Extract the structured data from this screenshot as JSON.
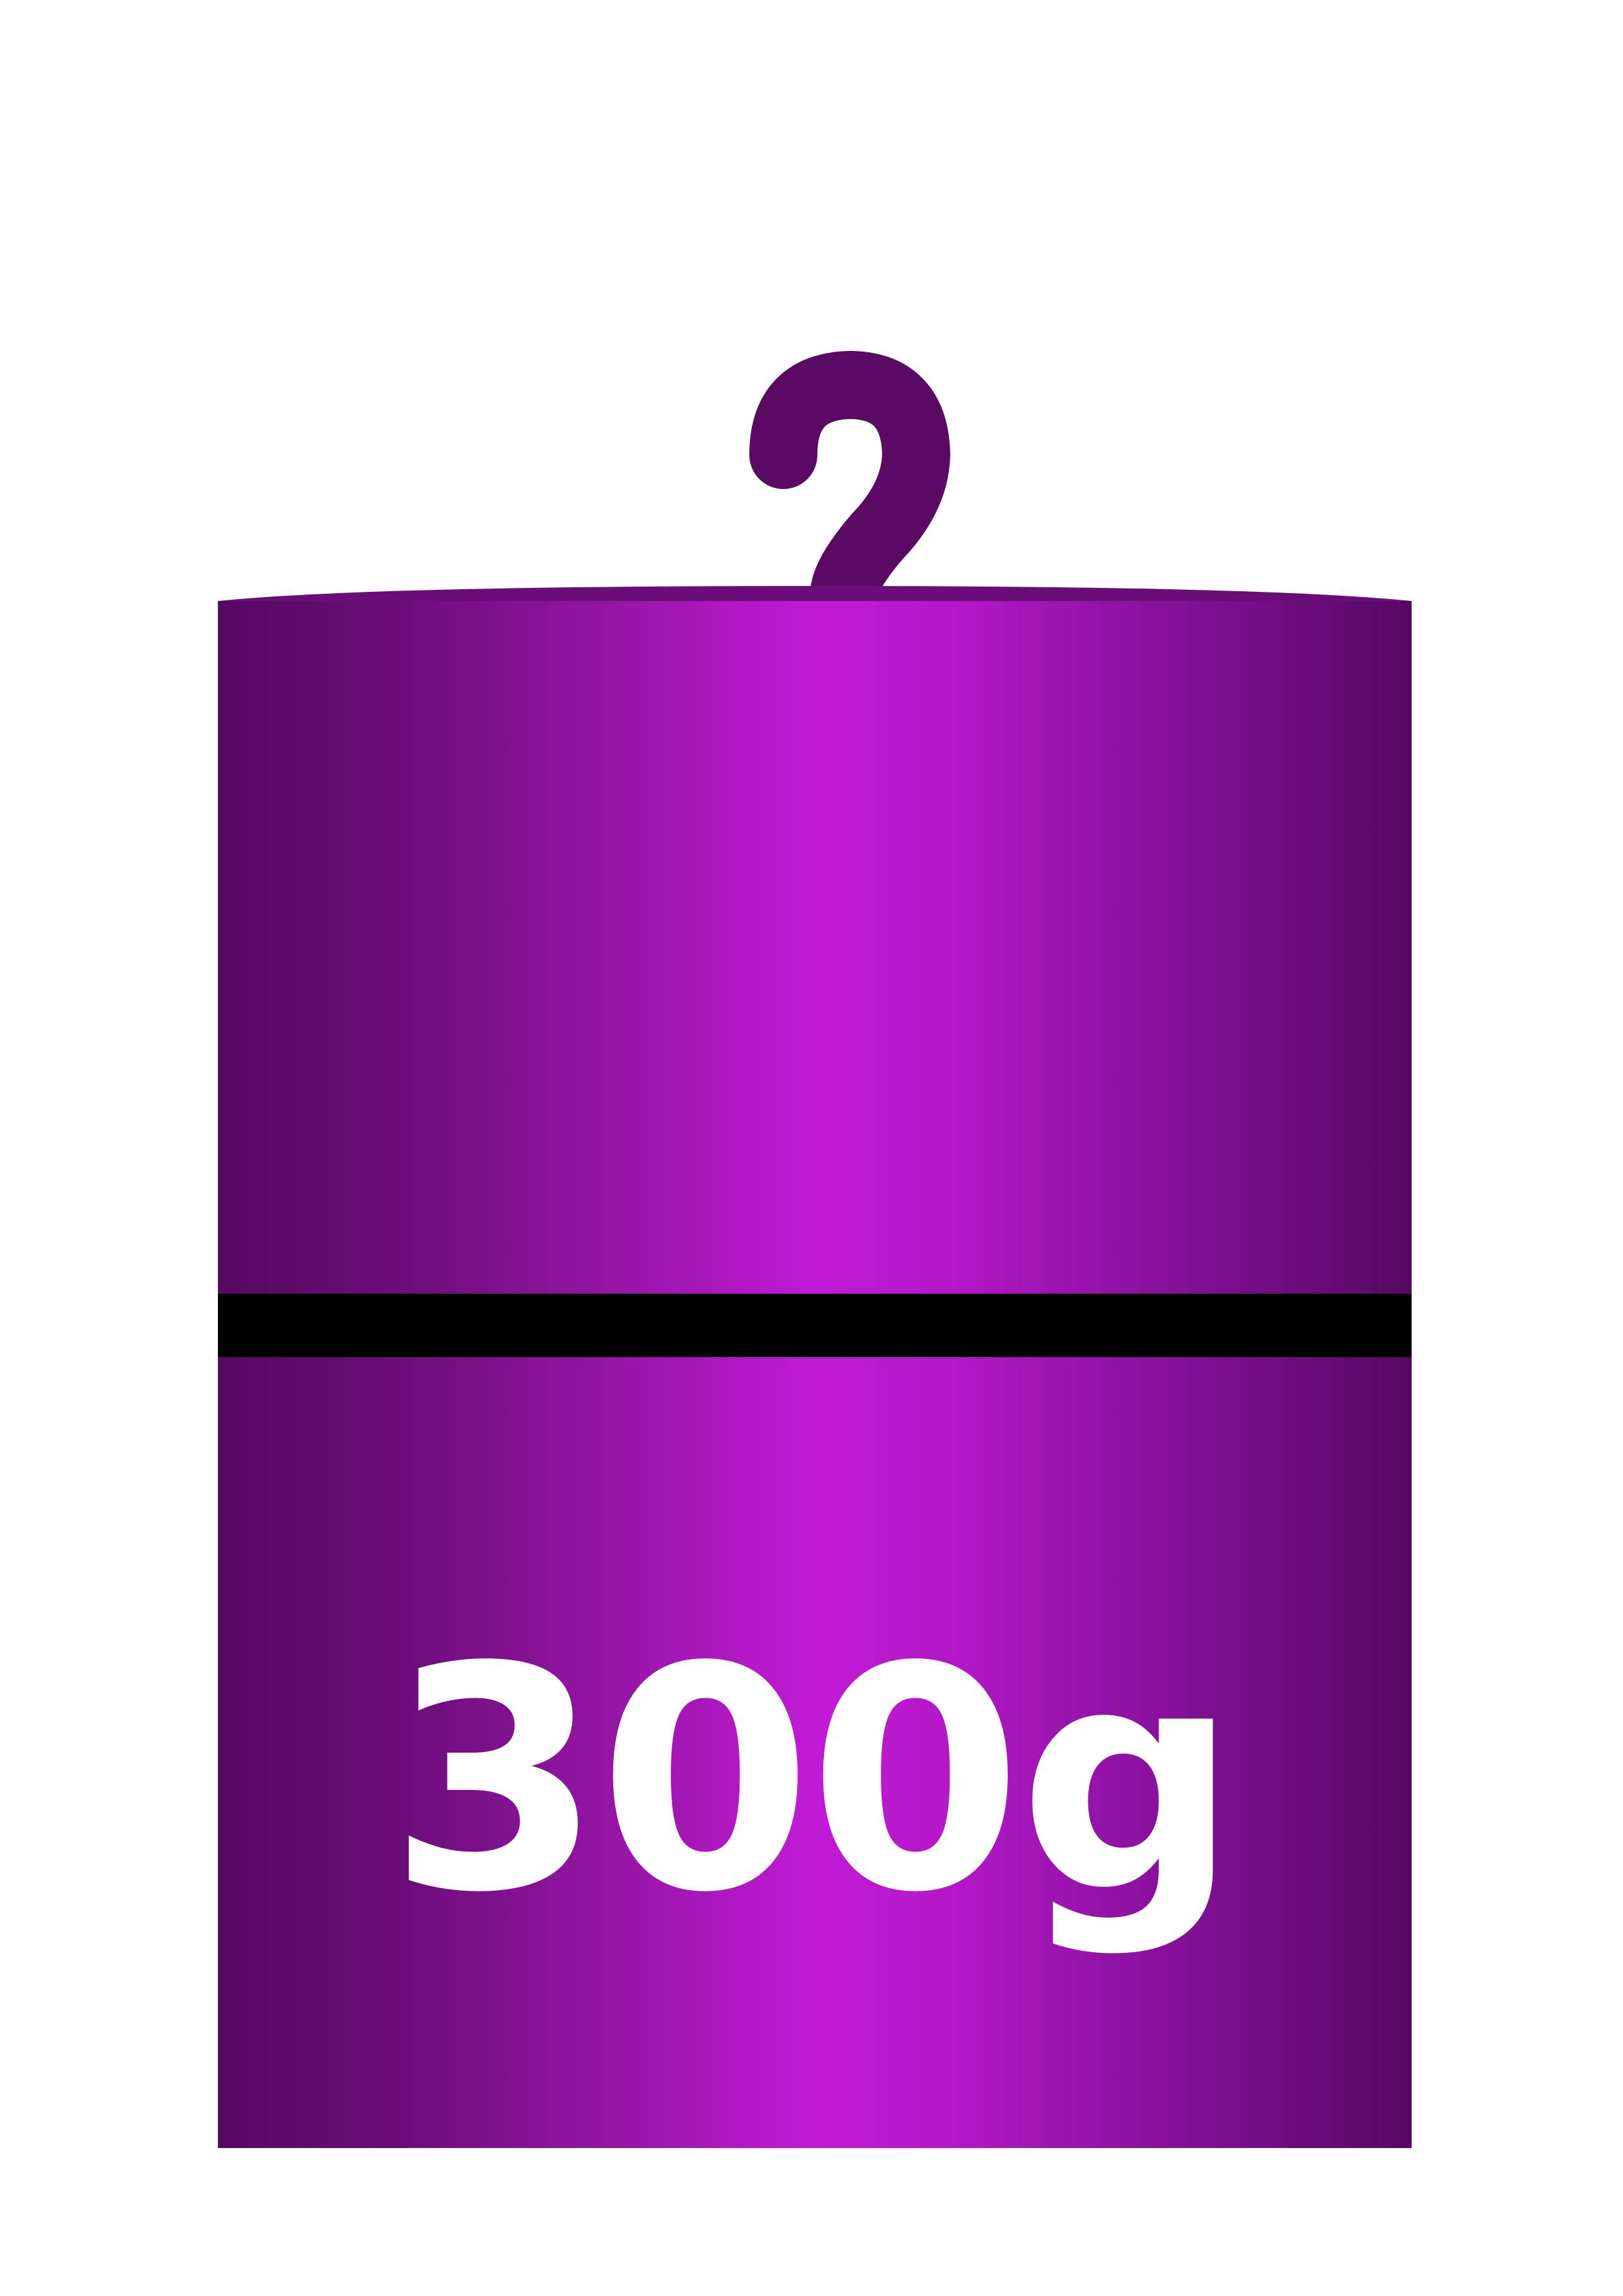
{
  "weight": {
    "label": "300g",
    "colors": {
      "body_center": "#c21ad6",
      "body_edge": "#560862",
      "hook": "#5a0a62",
      "band": "#000000",
      "label": "#ffffff",
      "background": "#ffffff"
    }
  }
}
